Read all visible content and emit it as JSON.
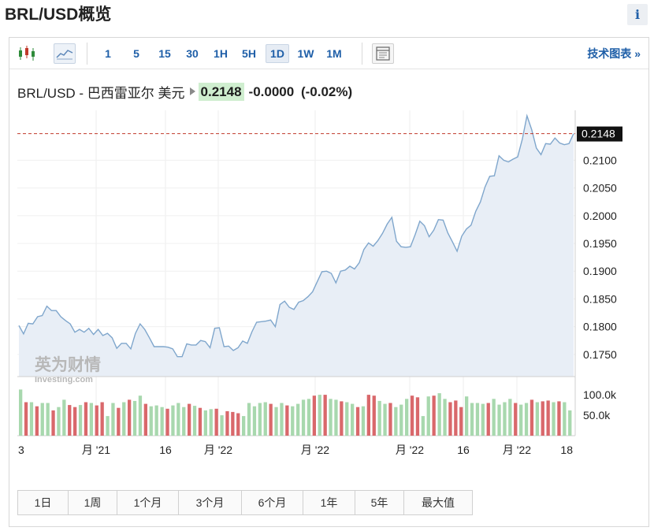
{
  "header": {
    "title": "BRL/USD概览",
    "info_label": "i"
  },
  "toolbar": {
    "intervals": [
      "1",
      "5",
      "15",
      "30",
      "1H",
      "5H",
      "1D",
      "1W",
      "1M"
    ],
    "active_interval": "1D",
    "tech_link": "技术图表 »"
  },
  "quote": {
    "pair": "BRL/USD - 巴西雷亚尔 美元",
    "price": "0.2148",
    "change": "-0.0000",
    "change_pct": "(-0.02%)"
  },
  "watermark": {
    "cn": "英为财情",
    "en": "Investing.com"
  },
  "colors": {
    "line": "#7fa6cc",
    "area": "#e8eef6",
    "up_bar": "#a8d8ae",
    "down_bar": "#d9686b",
    "price_line": "#c0392b",
    "accent": "#1f5fa8"
  },
  "chart_data": {
    "type": "area",
    "title": "",
    "current_price_label": "0.2148",
    "ylim": [
      0.171,
      0.219
    ],
    "y_ticks": [
      "0.2100",
      "0.2050",
      "0.2000",
      "0.1950",
      "0.1900",
      "0.1850",
      "0.1800",
      "0.1750"
    ],
    "x_tick_labels": [
      "3",
      "月 '21",
      "16",
      "月 '22",
      "月 '22",
      "月 '22",
      "16",
      "月 '22",
      "18"
    ],
    "grid": true,
    "price": [
      0.1802,
      0.1787,
      0.1806,
      0.1805,
      0.1818,
      0.182,
      0.1837,
      0.1829,
      0.1829,
      0.1818,
      0.1811,
      0.1805,
      0.179,
      0.1795,
      0.179,
      0.1797,
      0.1786,
      0.1795,
      0.1784,
      0.1788,
      0.178,
      0.1761,
      0.177,
      0.177,
      0.176,
      0.1788,
      0.1805,
      0.1795,
      0.178,
      0.1764,
      0.1764,
      0.1764,
      0.1763,
      0.176,
      0.1746,
      0.1746,
      0.1769,
      0.1767,
      0.1767,
      0.1775,
      0.1773,
      0.1762,
      0.1797,
      0.1798,
      0.1764,
      0.1765,
      0.1757,
      0.1762,
      0.1774,
      0.177,
      0.1791,
      0.1808,
      0.1809,
      0.181,
      0.1812,
      0.18,
      0.184,
      0.1846,
      0.1835,
      0.1831,
      0.1844,
      0.1847,
      0.1854,
      0.1863,
      0.1881,
      0.1899,
      0.19,
      0.1896,
      0.1879,
      0.19,
      0.1902,
      0.1909,
      0.1904,
      0.1915,
      0.1939,
      0.1951,
      0.1945,
      0.1955,
      0.1968,
      0.1985,
      0.1997,
      0.1954,
      0.1944,
      0.1943,
      0.1944,
      0.1966,
      0.199,
      0.1982,
      0.1962,
      0.1974,
      0.1993,
      0.1992,
      0.1969,
      0.1953,
      0.1936,
      0.1963,
      0.1976,
      0.1983,
      0.2008,
      0.2025,
      0.2052,
      0.2071,
      0.2072,
      0.2108,
      0.21,
      0.2097,
      0.2102,
      0.2106,
      0.2138,
      0.218,
      0.2155,
      0.2122,
      0.211,
      0.213,
      0.2129,
      0.214,
      0.2131,
      0.2128,
      0.213,
      0.2148
    ],
    "volume_ticks": [
      "100.0k",
      "50.0k"
    ],
    "volume_ylim": [
      0,
      135
    ],
    "volume": [
      {
        "v": 113,
        "c": "up"
      },
      {
        "v": 82,
        "c": "down"
      },
      {
        "v": 82,
        "c": "up"
      },
      {
        "v": 72,
        "c": "down"
      },
      {
        "v": 80,
        "c": "up"
      },
      {
        "v": 80,
        "c": "up"
      },
      {
        "v": 62,
        "c": "down"
      },
      {
        "v": 70,
        "c": "up"
      },
      {
        "v": 88,
        "c": "up"
      },
      {
        "v": 75,
        "c": "down"
      },
      {
        "v": 70,
        "c": "down"
      },
      {
        "v": 75,
        "c": "up"
      },
      {
        "v": 82,
        "c": "down"
      },
      {
        "v": 80,
        "c": "up"
      },
      {
        "v": 74,
        "c": "down"
      },
      {
        "v": 82,
        "c": "down"
      },
      {
        "v": 48,
        "c": "up"
      },
      {
        "v": 80,
        "c": "up"
      },
      {
        "v": 68,
        "c": "down"
      },
      {
        "v": 82,
        "c": "up"
      },
      {
        "v": 88,
        "c": "down"
      },
      {
        "v": 85,
        "c": "up"
      },
      {
        "v": 98,
        "c": "up"
      },
      {
        "v": 78,
        "c": "down"
      },
      {
        "v": 72,
        "c": "up"
      },
      {
        "v": 74,
        "c": "up"
      },
      {
        "v": 70,
        "c": "up"
      },
      {
        "v": 66,
        "c": "down"
      },
      {
        "v": 74,
        "c": "up"
      },
      {
        "v": 80,
        "c": "up"
      },
      {
        "v": 70,
        "c": "up"
      },
      {
        "v": 78,
        "c": "down"
      },
      {
        "v": 73,
        "c": "up"
      },
      {
        "v": 68,
        "c": "down"
      },
      {
        "v": 62,
        "c": "up"
      },
      {
        "v": 65,
        "c": "up"
      },
      {
        "v": 66,
        "c": "down"
      },
      {
        "v": 50,
        "c": "up"
      },
      {
        "v": 60,
        "c": "down"
      },
      {
        "v": 58,
        "c": "down"
      },
      {
        "v": 55,
        "c": "down"
      },
      {
        "v": 48,
        "c": "up"
      },
      {
        "v": 80,
        "c": "up"
      },
      {
        "v": 72,
        "c": "up"
      },
      {
        "v": 80,
        "c": "up"
      },
      {
        "v": 82,
        "c": "up"
      },
      {
        "v": 78,
        "c": "down"
      },
      {
        "v": 70,
        "c": "up"
      },
      {
        "v": 80,
        "c": "up"
      },
      {
        "v": 74,
        "c": "down"
      },
      {
        "v": 72,
        "c": "up"
      },
      {
        "v": 78,
        "c": "up"
      },
      {
        "v": 88,
        "c": "up"
      },
      {
        "v": 90,
        "c": "up"
      },
      {
        "v": 98,
        "c": "down"
      },
      {
        "v": 100,
        "c": "up"
      },
      {
        "v": 100,
        "c": "down"
      },
      {
        "v": 90,
        "c": "up"
      },
      {
        "v": 88,
        "c": "up"
      },
      {
        "v": 84,
        "c": "down"
      },
      {
        "v": 82,
        "c": "up"
      },
      {
        "v": 78,
        "c": "up"
      },
      {
        "v": 70,
        "c": "down"
      },
      {
        "v": 72,
        "c": "up"
      },
      {
        "v": 100,
        "c": "down"
      },
      {
        "v": 98,
        "c": "down"
      },
      {
        "v": 85,
        "c": "up"
      },
      {
        "v": 78,
        "c": "up"
      },
      {
        "v": 80,
        "c": "down"
      },
      {
        "v": 70,
        "c": "up"
      },
      {
        "v": 76,
        "c": "up"
      },
      {
        "v": 90,
        "c": "up"
      },
      {
        "v": 98,
        "c": "down"
      },
      {
        "v": 94,
        "c": "down"
      },
      {
        "v": 48,
        "c": "up"
      },
      {
        "v": 96,
        "c": "up"
      },
      {
        "v": 98,
        "c": "down"
      },
      {
        "v": 104,
        "c": "up"
      },
      {
        "v": 90,
        "c": "up"
      },
      {
        "v": 82,
        "c": "down"
      },
      {
        "v": 86,
        "c": "down"
      },
      {
        "v": 70,
        "c": "down"
      },
      {
        "v": 96,
        "c": "up"
      },
      {
        "v": 80,
        "c": "up"
      },
      {
        "v": 80,
        "c": "up"
      },
      {
        "v": 78,
        "c": "up"
      },
      {
        "v": 80,
        "c": "down"
      },
      {
        "v": 90,
        "c": "up"
      },
      {
        "v": 76,
        "c": "up"
      },
      {
        "v": 82,
        "c": "up"
      },
      {
        "v": 90,
        "c": "up"
      },
      {
        "v": 80,
        "c": "down"
      },
      {
        "v": 76,
        "c": "up"
      },
      {
        "v": 80,
        "c": "up"
      },
      {
        "v": 88,
        "c": "down"
      },
      {
        "v": 82,
        "c": "up"
      },
      {
        "v": 84,
        "c": "down"
      },
      {
        "v": 86,
        "c": "down"
      },
      {
        "v": 82,
        "c": "up"
      },
      {
        "v": 84,
        "c": "down"
      },
      {
        "v": 82,
        "c": "up"
      },
      {
        "v": 62,
        "c": "up"
      }
    ]
  },
  "range_buttons": [
    "1日",
    "1周",
    "1个月",
    "3个月",
    "6个月",
    "1年",
    "5年",
    "最大值"
  ]
}
